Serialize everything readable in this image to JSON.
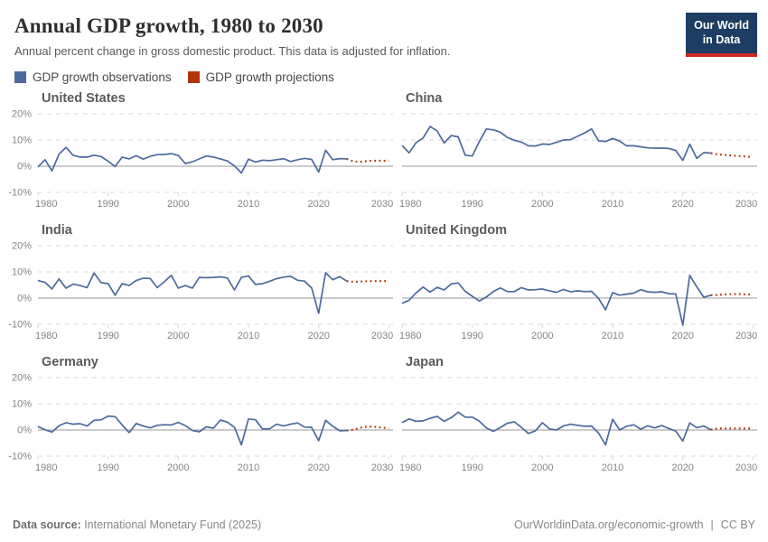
{
  "header": {
    "title": "Annual GDP growth, 1980 to 2030",
    "subtitle": "Annual percent change in gross domestic product. This data is adjusted for inflation.",
    "logo": {
      "line1": "Our World",
      "line2": "in Data"
    }
  },
  "legend": {
    "observations": {
      "label": "GDP growth observations",
      "color": "#4c6a9c"
    },
    "projections": {
      "label": "GDP growth projections",
      "color": "#b13507"
    }
  },
  "colors": {
    "grid": "#d9d9d9",
    "zero_line": "#999999",
    "tick_label": "#858585",
    "logo_bg": "#1d3d63",
    "logo_red": "#cf2722"
  },
  "chart_data": {
    "type": "line",
    "y_unit": "%",
    "x_min": 1980,
    "x_max": 2030.6,
    "x_ticks": [
      1980,
      1990,
      2000,
      2010,
      2020,
      2030
    ],
    "y_gridlines": [
      {
        "value": 20,
        "label": "20%"
      },
      {
        "value": 10,
        "label": "10%"
      },
      {
        "value": 0,
        "label": "0%"
      },
      {
        "value": -10,
        "label": "-10%"
      }
    ],
    "charts": [
      {
        "title": "United States",
        "observations": {
          "start_year": 1980,
          "values": [
            -0.3,
            2.5,
            -1.8,
            4.6,
            7.2,
            4.2,
            3.5,
            3.5,
            4.2,
            3.7,
            1.9,
            -0.1,
            3.5,
            2.8,
            4.0,
            2.7,
            3.8,
            4.4,
            4.5,
            4.8,
            4.1,
            1.0,
            1.7,
            2.8,
            3.9,
            3.5,
            2.8,
            2.0,
            0.1,
            -2.6,
            2.7,
            1.6,
            2.3,
            2.1,
            2.5,
            2.9,
            1.8,
            2.5,
            3.0,
            2.6,
            -2.2,
            6.1,
            2.5,
            2.9,
            2.8
          ]
        },
        "projections": {
          "start_year": 2024,
          "values": [
            2.8,
            1.8,
            1.7,
            2.0,
            2.1,
            2.1,
            2.1
          ]
        }
      },
      {
        "title": "China",
        "observations": {
          "start_year": 1980,
          "values": [
            7.9,
            5.1,
            9.0,
            10.8,
            15.2,
            13.4,
            8.9,
            11.7,
            11.2,
            4.2,
            3.9,
            9.3,
            14.2,
            13.9,
            13.0,
            11.0,
            9.9,
            9.2,
            7.8,
            7.7,
            8.5,
            8.3,
            9.1,
            10.0,
            10.1,
            11.4,
            12.7,
            14.2,
            9.7,
            9.4,
            10.6,
            9.6,
            7.8,
            7.8,
            7.4,
            7.0,
            6.9,
            6.9,
            6.8,
            6.0,
            2.2,
            8.4,
            3.0,
            5.2,
            5.0
          ]
        },
        "projections": {
          "start_year": 2024,
          "values": [
            5.0,
            4.5,
            4.3,
            4.1,
            3.9,
            3.7,
            3.4
          ]
        }
      },
      {
        "title": "India",
        "observations": {
          "start_year": 1980,
          "values": [
            6.7,
            6.0,
            3.5,
            7.3,
            3.8,
            5.3,
            4.8,
            4.0,
            9.6,
            5.9,
            5.5,
            1.1,
            5.5,
            4.8,
            6.7,
            7.6,
            7.5,
            4.0,
            6.2,
            8.7,
            3.8,
            4.8,
            3.8,
            7.9,
            7.8,
            7.9,
            8.1,
            7.7,
            3.1,
            7.9,
            8.5,
            5.2,
            5.5,
            6.4,
            7.4,
            8.0,
            8.3,
            6.8,
            6.5,
            3.9,
            -5.8,
            9.7,
            7.0,
            8.2,
            6.5
          ]
        },
        "projections": {
          "start_year": 2024,
          "values": [
            6.5,
            6.2,
            6.3,
            6.5,
            6.5,
            6.5,
            6.5
          ]
        }
      },
      {
        "title": "United Kingdom",
        "observations": {
          "start_year": 1980,
          "values": [
            -2.0,
            -0.8,
            2.0,
            4.2,
            2.3,
            4.1,
            3.1,
            5.4,
            5.8,
            2.6,
            0.7,
            -1.1,
            0.4,
            2.5,
            3.9,
            2.5,
            2.5,
            4.0,
            3.1,
            3.2,
            3.5,
            2.8,
            2.2,
            3.3,
            2.4,
            2.8,
            2.5,
            2.6,
            -0.1,
            -4.5,
            2.1,
            1.1,
            1.5,
            1.9,
            3.2,
            2.4,
            2.2,
            2.4,
            1.7,
            1.6,
            -10.3,
            8.7,
            4.3,
            0.3,
            1.1
          ]
        },
        "projections": {
          "start_year": 2024,
          "values": [
            1.1,
            1.2,
            1.4,
            1.5,
            1.5,
            1.4,
            1.4
          ]
        }
      },
      {
        "title": "Germany",
        "observations": {
          "start_year": 1980,
          "values": [
            1.3,
            0.1,
            -0.8,
            1.6,
            2.8,
            2.2,
            2.4,
            1.5,
            3.7,
            3.9,
            5.3,
            5.1,
            1.9,
            -1.0,
            2.5,
            1.5,
            0.8,
            1.8,
            2.0,
            1.9,
            2.9,
            1.7,
            -0.2,
            -0.7,
            1.2,
            0.7,
            3.8,
            3.0,
            1.0,
            -5.7,
            4.2,
            3.9,
            0.4,
            0.4,
            2.2,
            1.5,
            2.2,
            2.7,
            1.1,
            1.0,
            -4.1,
            3.7,
            1.4,
            -0.3,
            -0.2
          ]
        },
        "projections": {
          "start_year": 2024,
          "values": [
            -0.2,
            0.1,
            0.9,
            1.3,
            1.2,
            0.9,
            0.7
          ]
        }
      },
      {
        "title": "Japan",
        "observations": {
          "start_year": 1980,
          "values": [
            2.8,
            4.2,
            3.3,
            3.5,
            4.5,
            5.2,
            3.3,
            4.7,
            6.8,
            4.9,
            4.9,
            3.4,
            0.8,
            -0.5,
            0.9,
            2.6,
            3.1,
            1.0,
            -1.3,
            -0.3,
            2.8,
            0.4,
            0.0,
            1.5,
            2.2,
            1.8,
            1.4,
            1.5,
            -1.2,
            -5.7,
            4.1,
            0.0,
            1.4,
            2.0,
            0.3,
            1.6,
            0.8,
            1.7,
            0.6,
            -0.4,
            -4.2,
            2.7,
            0.9,
            1.5,
            0.1
          ]
        },
        "projections": {
          "start_year": 2024,
          "values": [
            0.1,
            0.6,
            0.6,
            0.6,
            0.6,
            0.6,
            0.6
          ]
        }
      }
    ]
  },
  "footer": {
    "source_label": "Data source:",
    "source_value": " International Monetary Fund (2025)",
    "url": "OurWorldinData.org/economic-growth",
    "license": "CC BY"
  }
}
